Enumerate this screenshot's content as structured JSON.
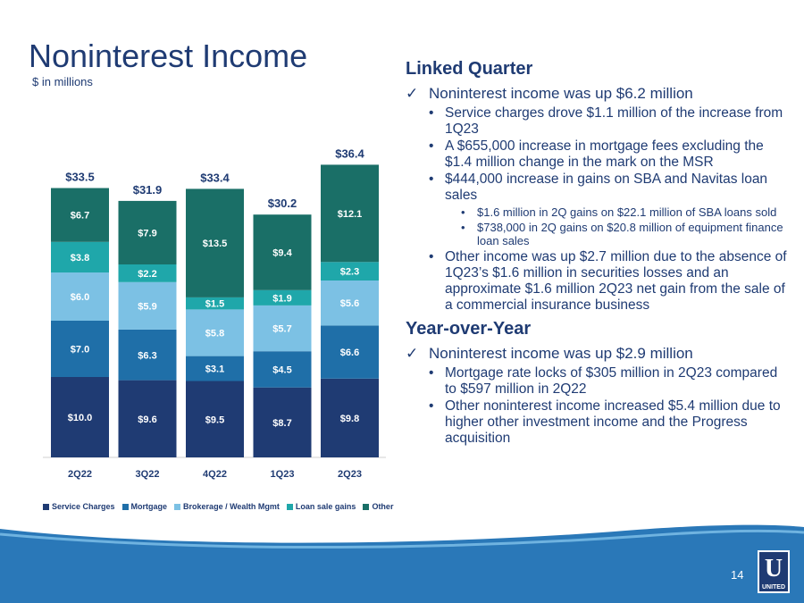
{
  "title": "Noninterest Income",
  "subtitle": "$ in millions",
  "chart_data": {
    "type": "bar",
    "stacked": true,
    "categories": [
      "2Q22",
      "3Q22",
      "4Q22",
      "1Q23",
      "2Q23"
    ],
    "series": [
      {
        "name": "Service Charges",
        "color": "#1f3b73",
        "values": [
          10.0,
          9.6,
          9.5,
          8.7,
          9.8
        ],
        "labels": [
          "$10.0",
          "$9.6",
          "$9.5",
          "$8.7",
          "$9.8"
        ]
      },
      {
        "name": "Mortgage",
        "color": "#1f6fa8",
        "values": [
          7.0,
          6.3,
          3.1,
          4.5,
          6.6
        ],
        "labels": [
          "$7.0",
          "$6.3",
          "$3.1",
          "$4.5",
          "$6.6"
        ]
      },
      {
        "name": "Brokerage / Wealth Mgmt",
        "color": "#7cc1e4",
        "values": [
          6.0,
          5.9,
          5.8,
          5.7,
          5.6
        ],
        "labels": [
          "$6.0",
          "$5.9",
          "$5.8",
          "$5.7",
          "$5.6"
        ]
      },
      {
        "name": "Loan sale gains",
        "color": "#1fa7aa",
        "values": [
          3.8,
          2.2,
          1.5,
          1.9,
          2.3
        ],
        "labels": [
          "$3.8",
          "$2.2",
          "$1.5",
          "$1.9",
          "$2.3"
        ]
      },
      {
        "name": "Other",
        "color": "#1a6f67",
        "values": [
          6.7,
          7.9,
          13.5,
          9.4,
          12.1
        ],
        "labels": [
          "$6.7",
          "$7.9",
          "$13.5",
          "$9.4",
          "$12.1"
        ]
      }
    ],
    "totals": [
      33.5,
      31.9,
      33.4,
      30.2,
      36.4
    ],
    "total_labels": [
      "$33.5",
      "$31.9",
      "$33.4",
      "$30.2",
      "$36.4"
    ],
    "ylim": [
      0,
      38
    ],
    "legend_position": "bottom",
    "grid": false
  },
  "linked_quarter": {
    "heading": "Linked Quarter",
    "check": "Noninterest income was up $6.2 million",
    "bullets": [
      {
        "text": "Service charges drove $1.1 million of the increase from 1Q23"
      },
      {
        "text": "A $655,000 increase in mortgage fees excluding the $1.4 million change in the mark on the MSR"
      },
      {
        "text": "$444,000 increase in gains on SBA and Navitas loan sales",
        "sub": [
          "$1.6 million in 2Q gains on $22.1 million of SBA loans sold",
          "$738,000 in 2Q gains on $20.8 million of equipment finance loan sales"
        ]
      },
      {
        "text": "Other income was up $2.7 million due to the absence of 1Q23’s $1.6 million in securities losses and an approximate $1.6 million 2Q23 net gain from the sale of a commercial insurance business"
      }
    ]
  },
  "year_over_year": {
    "heading": "Year-over-Year",
    "check": "Noninterest income was up $2.9 million",
    "bullets": [
      "Mortgage rate locks of $305 million in 2Q23 compared to $597 million in 2Q22",
      "Other noninterest income increased $5.4 million due to higher other investment income and the Progress acquisition"
    ]
  },
  "page_number": "14",
  "logo": {
    "letter": "U",
    "text": "UNITED"
  },
  "colors": {
    "brand": "#1f3b73",
    "footer": "#2a78b8"
  }
}
